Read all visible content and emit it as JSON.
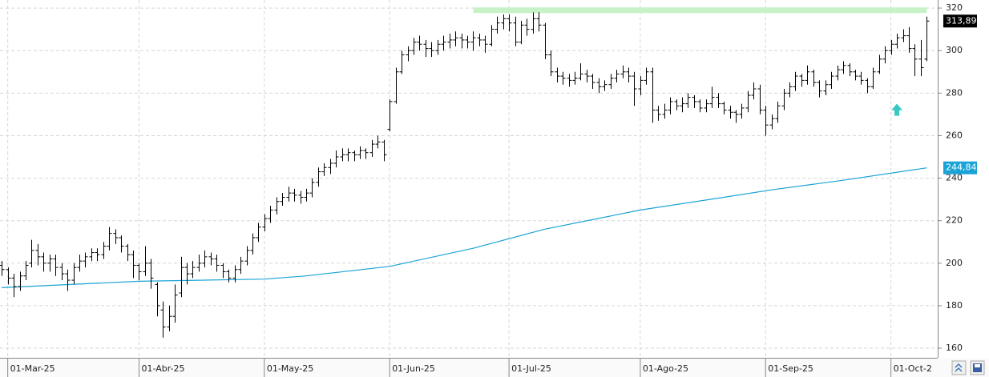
{
  "chart_data": {
    "type": "ohlc",
    "xlim": [
      -0.3,
      155.9
    ],
    "ylim": [
      155.5,
      323.8
    ],
    "yticks": [
      160,
      180,
      200,
      220,
      240,
      260,
      280,
      300,
      320
    ],
    "xticks": [
      {
        "value": 1,
        "label": "01-Mar-25"
      },
      {
        "value": 23,
        "label": "01-Abr-25"
      },
      {
        "value": 44,
        "label": "01-May-25"
      },
      {
        "value": 65,
        "label": "01-Jun-25"
      },
      {
        "value": 85,
        "label": "01-Jul-25"
      },
      {
        "value": 107,
        "label": "01-Ago-25"
      },
      {
        "value": 128,
        "label": "01-Sep-25"
      },
      {
        "value": 149,
        "label": "01-Oct-2"
      }
    ],
    "grid": true,
    "color": "#000000",
    "ohlc": [
      [
        199,
        201,
        194,
        197
      ],
      [
        197,
        198,
        190,
        193
      ],
      [
        193,
        195,
        184,
        189
      ],
      [
        189,
        196,
        187,
        194
      ],
      [
        194,
        201,
        192,
        199
      ],
      [
        200,
        211,
        198,
        206
      ],
      [
        206,
        209,
        199,
        203
      ],
      [
        203,
        205,
        196,
        200
      ],
      [
        200,
        204,
        196,
        202
      ],
      [
        202,
        204,
        194,
        198
      ],
      [
        198,
        200,
        192,
        195
      ],
      [
        195,
        197,
        187,
        192
      ],
      [
        192,
        200,
        190,
        198
      ],
      [
        198,
        204,
        196,
        201
      ],
      [
        201,
        205,
        198,
        203
      ],
      [
        203,
        207,
        201,
        205
      ],
      [
        205,
        207,
        201,
        204
      ],
      [
        204,
        210,
        202,
        208
      ],
      [
        208,
        217,
        206,
        214
      ],
      [
        214,
        216,
        209,
        212
      ],
      [
        212,
        213,
        205,
        208
      ],
      [
        208,
        209,
        201,
        204
      ],
      [
        204,
        206,
        193,
        199
      ],
      [
        199,
        200,
        192,
        196
      ],
      [
        196,
        208,
        194,
        200
      ],
      [
        200,
        202,
        188,
        193
      ],
      [
        190,
        191,
        175,
        180
      ],
      [
        178,
        182,
        165,
        170
      ],
      [
        170,
        180,
        168,
        175
      ],
      [
        175,
        190,
        172,
        185
      ],
      [
        186,
        203,
        184,
        198
      ],
      [
        198,
        200,
        190,
        195
      ],
      [
        195,
        201,
        193,
        198
      ],
      [
        198,
        204,
        196,
        200
      ],
      [
        200,
        206,
        198,
        203
      ],
      [
        203,
        205,
        199,
        202
      ],
      [
        202,
        204,
        196,
        199
      ],
      [
        199,
        200,
        193,
        196
      ],
      [
        196,
        197,
        191,
        193
      ],
      [
        193,
        199,
        191,
        197
      ],
      [
        197,
        203,
        195,
        201
      ],
      [
        201,
        208,
        199,
        206
      ],
      [
        206,
        214,
        204,
        212
      ],
      [
        212,
        219,
        210,
        217
      ],
      [
        217,
        223,
        215,
        221
      ],
      [
        221,
        227,
        219,
        225
      ],
      [
        225,
        231,
        223,
        229
      ],
      [
        229,
        233,
        227,
        231
      ],
      [
        231,
        236,
        229,
        233
      ],
      [
        233,
        235,
        229,
        232
      ],
      [
        232,
        234,
        228,
        231
      ],
      [
        231,
        235,
        229,
        233
      ],
      [
        233,
        240,
        231,
        238
      ],
      [
        238,
        245,
        236,
        243
      ],
      [
        243,
        247,
        241,
        245
      ],
      [
        245,
        249,
        242,
        247
      ],
      [
        247,
        253,
        245,
        250
      ],
      [
        250,
        254,
        248,
        251
      ],
      [
        251,
        254,
        248,
        252
      ],
      [
        252,
        253,
        248,
        251
      ],
      [
        251,
        255,
        249,
        253
      ],
      [
        253,
        254,
        249,
        252
      ],
      [
        252,
        258,
        250,
        256
      ],
      [
        256,
        260,
        254,
        257
      ],
      [
        257,
        258,
        248,
        251
      ],
      [
        263,
        277,
        262,
        276
      ],
      [
        276,
        292,
        275,
        290
      ],
      [
        290,
        300,
        289,
        298
      ],
      [
        298,
        302,
        295,
        300
      ],
      [
        300,
        306,
        298,
        304
      ],
      [
        304,
        307,
        300,
        303
      ],
      [
        303,
        305,
        297,
        301
      ],
      [
        301,
        304,
        297,
        300
      ],
      [
        300,
        305,
        298,
        303
      ],
      [
        303,
        307,
        300,
        304
      ],
      [
        304,
        308,
        301,
        305
      ],
      [
        305,
        309,
        302,
        306
      ],
      [
        306,
        308,
        301,
        305
      ],
      [
        305,
        307,
        301,
        304
      ],
      [
        304,
        309,
        300,
        306
      ],
      [
        306,
        308,
        302,
        305
      ],
      [
        305,
        307,
        299,
        303
      ],
      [
        303,
        312,
        302,
        310
      ],
      [
        310,
        316,
        308,
        313
      ],
      [
        313,
        317,
        310,
        315
      ],
      [
        315,
        317,
        309,
        313
      ],
      [
        313,
        316,
        302,
        304
      ],
      [
        304,
        314,
        303,
        312
      ],
      [
        312,
        315,
        307,
        310
      ],
      [
        310,
        318,
        308,
        315
      ],
      [
        315,
        318,
        309,
        312
      ],
      [
        312,
        313,
        296,
        298
      ],
      [
        298,
        300,
        288,
        290
      ],
      [
        290,
        292,
        285,
        288
      ],
      [
        288,
        290,
        284,
        287
      ],
      [
        287,
        289,
        283,
        286
      ],
      [
        286,
        290,
        284,
        287
      ],
      [
        287,
        294,
        286,
        289
      ],
      [
        289,
        291,
        285,
        288
      ],
      [
        288,
        289,
        282,
        285
      ],
      [
        285,
        287,
        280,
        283
      ],
      [
        283,
        286,
        281,
        284
      ],
      [
        284,
        289,
        282,
        287
      ],
      [
        287,
        291,
        285,
        289
      ],
      [
        289,
        293,
        287,
        290
      ],
      [
        290,
        292,
        285,
        288
      ],
      [
        288,
        290,
        274,
        282
      ],
      [
        282,
        288,
        279,
        286
      ],
      [
        286,
        292,
        284,
        290
      ],
      [
        290,
        292,
        266,
        272
      ],
      [
        272,
        274,
        267,
        270
      ],
      [
        270,
        275,
        268,
        272
      ],
      [
        272,
        278,
        270,
        276
      ],
      [
        276,
        277,
        272,
        274
      ],
      [
        274,
        278,
        271,
        275
      ],
      [
        275,
        280,
        273,
        278
      ],
      [
        278,
        279,
        273,
        276
      ],
      [
        276,
        277,
        271,
        273
      ],
      [
        273,
        277,
        271,
        275
      ],
      [
        275,
        283,
        273,
        278
      ],
      [
        278,
        280,
        273,
        275
      ],
      [
        275,
        276,
        270,
        272
      ],
      [
        272,
        274,
        268,
        271
      ],
      [
        271,
        272,
        266,
        270
      ],
      [
        270,
        275,
        268,
        273
      ],
      [
        273,
        281,
        271,
        279
      ],
      [
        279,
        285,
        277,
        282
      ],
      [
        282,
        284,
        270,
        272
      ],
      [
        272,
        274,
        260,
        265
      ],
      [
        265,
        270,
        263,
        268
      ],
      [
        268,
        276,
        266,
        274
      ],
      [
        274,
        282,
        272,
        280
      ],
      [
        280,
        285,
        278,
        283
      ],
      [
        283,
        290,
        281,
        288
      ],
      [
        288,
        289,
        283,
        286
      ],
      [
        286,
        293,
        284,
        290
      ],
      [
        290,
        291,
        283,
        285
      ],
      [
        285,
        286,
        278,
        281
      ],
      [
        281,
        286,
        279,
        284
      ],
      [
        284,
        290,
        282,
        288
      ],
      [
        288,
        293,
        286,
        291
      ],
      [
        291,
        295,
        289,
        293
      ],
      [
        293,
        294,
        288,
        290
      ],
      [
        290,
        291,
        286,
        288
      ],
      [
        288,
        290,
        284,
        286
      ],
      [
        286,
        287,
        280,
        283
      ],
      [
        283,
        292,
        282,
        290
      ],
      [
        290,
        298,
        289,
        296
      ],
      [
        296,
        302,
        294,
        300
      ],
      [
        300,
        305,
        298,
        303
      ],
      [
        303,
        308,
        301,
        306
      ],
      [
        306,
        310,
        304,
        307
      ],
      [
        307,
        311,
        299,
        301
      ],
      [
        301,
        303,
        288,
        296
      ],
      [
        296,
        305,
        288,
        292
      ],
      [
        296,
        316,
        295,
        313.89
      ]
    ],
    "moving_average": {
      "color": "#1aa3d6",
      "x": [
        0,
        23,
        44,
        51,
        65,
        79,
        91,
        107,
        121,
        129,
        141,
        155
      ],
      "values": [
        188.5,
        191.5,
        192.5,
        194,
        198.5,
        207,
        216,
        225,
        231,
        234.5,
        239,
        244.84
      ]
    },
    "resistance": {
      "value": 319,
      "x": [
        79,
        155
      ],
      "color": "#c6f2c6"
    },
    "arrow": {
      "x": 150,
      "y": 272,
      "color": "#38c9c0"
    },
    "last_price": {
      "value": 313.89,
      "label": "313,89",
      "color": "#000000"
    },
    "ma_price": {
      "value": 244.84,
      "label": "244,84",
      "color": "#1aa3d6"
    }
  }
}
